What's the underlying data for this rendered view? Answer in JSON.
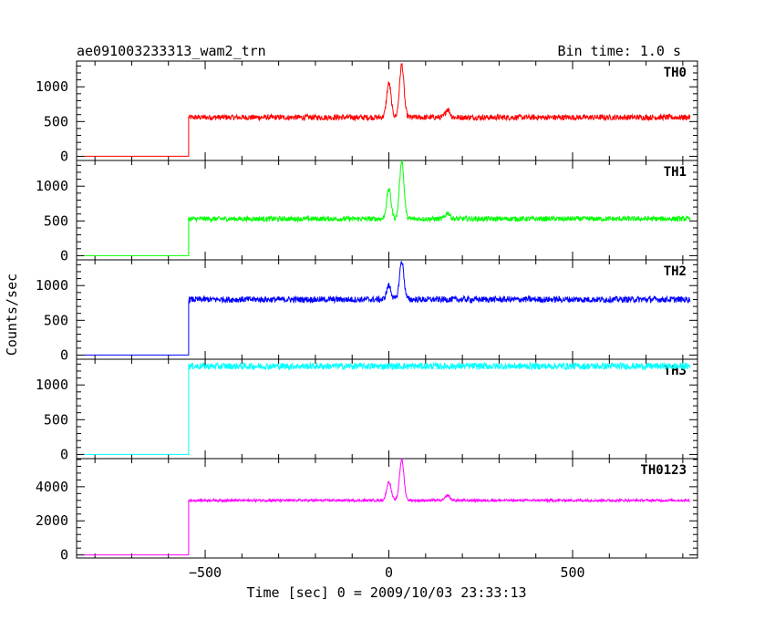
{
  "chart_data": {
    "type": "line",
    "title": "ae091003233313_wam2_trn",
    "bin_time_label": "Bin time: 1.0 s",
    "xlabel": "Time [sec] 0 = 2009/10/03 23:33:13",
    "ylabel": "Counts/sec",
    "xlim": [
      -850,
      840
    ],
    "x_tick_values": [
      -500,
      0,
      500
    ],
    "x_tick_labels": [
      "−500",
      "0",
      "500"
    ],
    "x_data_range": [
      -830,
      820
    ],
    "onset_x": -545,
    "panels": [
      {
        "name": "TH0",
        "color": "#ff0000",
        "ylim": [
          -60,
          1370
        ],
        "y_ticks": [
          0,
          500,
          1000
        ],
        "y_tick_labels": [
          "0",
          "500",
          "1000"
        ],
        "pre_level": 0,
        "level": 560,
        "noise": 50,
        "peaks": [
          {
            "x": 0,
            "value": 1050
          },
          {
            "x": 35,
            "value": 1320
          },
          {
            "x": 160,
            "value": 680
          }
        ]
      },
      {
        "name": "TH1",
        "color": "#00ff00",
        "ylim": [
          -60,
          1370
        ],
        "y_ticks": [
          0,
          500,
          1000
        ],
        "y_tick_labels": [
          "0",
          "500",
          "1000"
        ],
        "pre_level": 0,
        "level": 530,
        "noise": 45,
        "peaks": [
          {
            "x": 0,
            "value": 960
          },
          {
            "x": 35,
            "value": 1370
          },
          {
            "x": 160,
            "value": 620
          }
        ]
      },
      {
        "name": "TH2",
        "color": "#0000ff",
        "ylim": [
          -60,
          1370
        ],
        "y_ticks": [
          0,
          500,
          1000
        ],
        "y_tick_labels": [
          "0",
          "500",
          "1000"
        ],
        "pre_level": 0,
        "level": 800,
        "noise": 55,
        "peaks": [
          {
            "x": 0,
            "value": 1000
          },
          {
            "x": 35,
            "value": 1350
          }
        ]
      },
      {
        "name": "TH3",
        "color": "#00ffff",
        "ylim": [
          -60,
          1370
        ],
        "y_ticks": [
          0,
          500,
          1000
        ],
        "y_tick_labels": [
          "0",
          "500",
          "1000"
        ],
        "pre_level": 0,
        "level": 1270,
        "noise": 60,
        "peaks": []
      },
      {
        "name": "TH0123",
        "color": "#ff00ff",
        "ylim": [
          -180,
          5650
        ],
        "y_ticks": [
          0,
          2000,
          4000
        ],
        "y_tick_labels": [
          "0",
          "2000",
          "4000"
        ],
        "pre_level": 0,
        "level": 3200,
        "noise": 90,
        "peaks": [
          {
            "x": 0,
            "value": 4300
          },
          {
            "x": 35,
            "value": 5600
          },
          {
            "x": 160,
            "value": 3500
          }
        ]
      }
    ]
  }
}
